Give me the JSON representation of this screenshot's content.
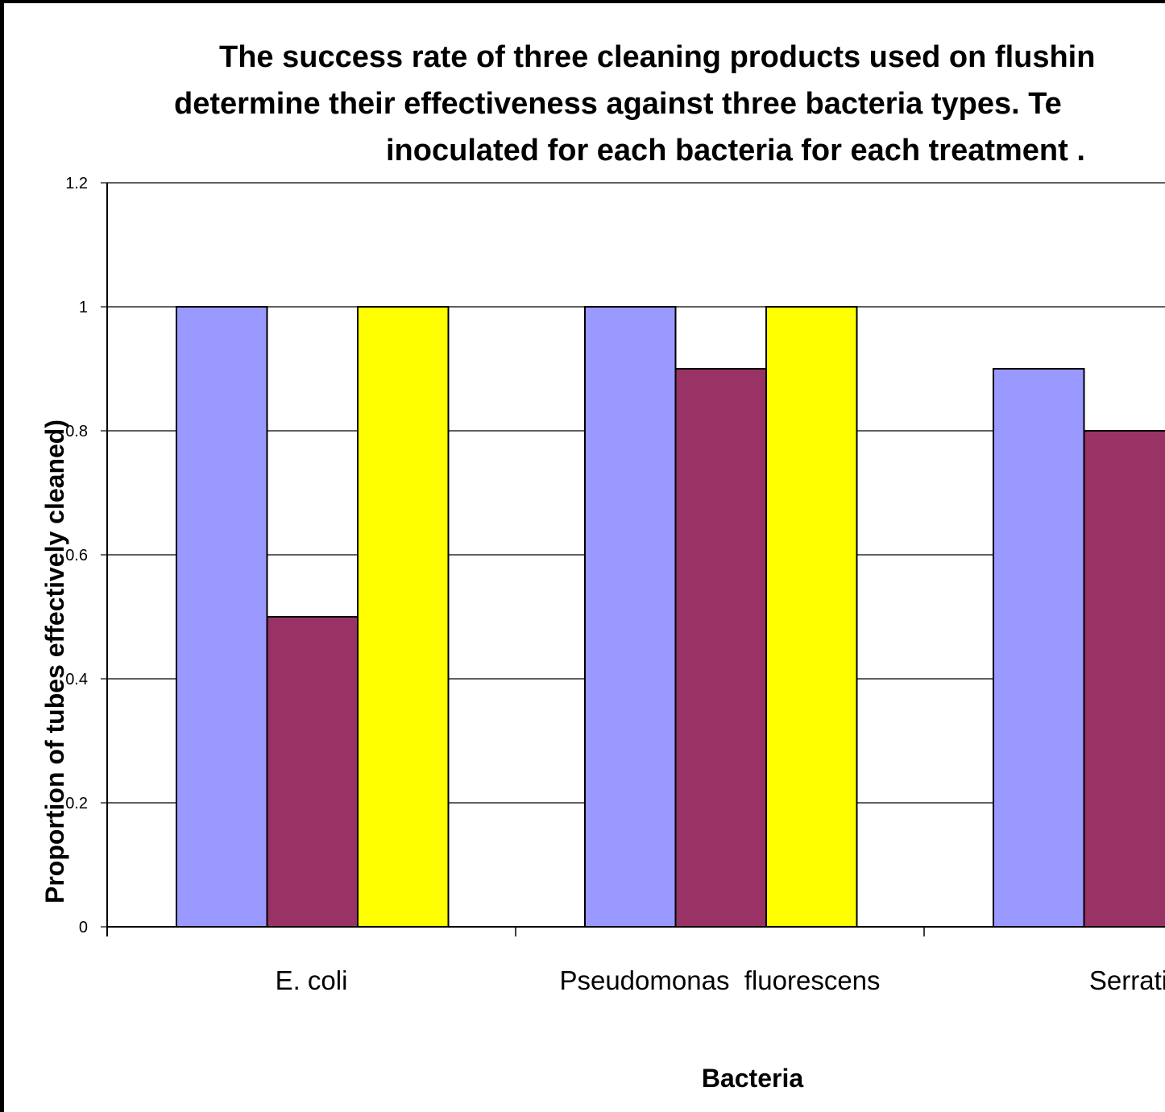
{
  "chart_data": {
    "type": "bar",
    "title_lines": [
      "The success rate of three cleaning products used on  flushin",
      "determine their effectiveness against three bacteria types.  Te",
      "inoculated for each bacteria for each treatment ."
    ],
    "xlabel": "Bacteria",
    "ylabel": "Proportion of tubes effectively cleaned)",
    "categories": [
      "E. coli",
      "Pseudomonas  fluorescens",
      "Serrati"
    ],
    "series": [
      {
        "values": [
          1.0,
          1.0,
          0.9
        ],
        "color": "#9999ff"
      },
      {
        "values": [
          0.5,
          0.9,
          0.8
        ],
        "color": "#993366"
      },
      {
        "values": [
          1.0,
          1.0,
          null
        ],
        "color": "#ffff00"
      }
    ],
    "ylim": [
      0,
      1.2
    ],
    "yticks": [
      "0",
      "0.2",
      "0.4",
      "0.6",
      "0.8",
      "1",
      "1.2"
    ],
    "grid": true,
    "legend": "none"
  }
}
